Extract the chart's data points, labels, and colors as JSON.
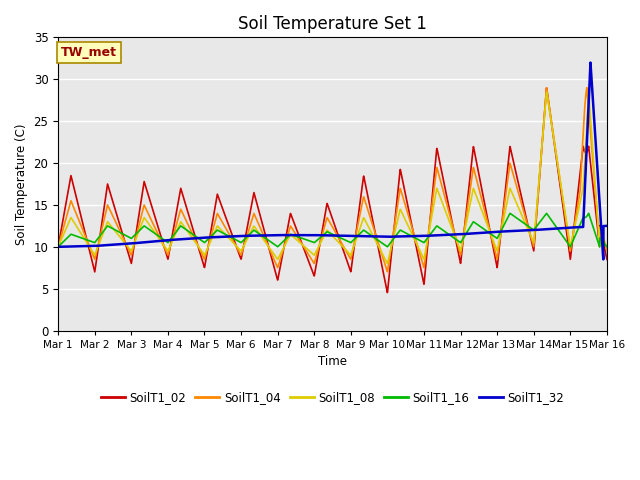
{
  "title": "Soil Temperature Set 1",
  "ylabel": "Soil Temperature (C)",
  "xlabel": "Time",
  "ylim": [
    0,
    35
  ],
  "xlim": [
    0,
    15
  ],
  "annotation": "TW_met",
  "plot_bg_color": "#e8e8e8",
  "series_colors": {
    "SoilT1_02": "#cc0000",
    "SoilT1_04": "#ff8800",
    "SoilT1_08": "#ddcc00",
    "SoilT1_16": "#00bb00",
    "SoilT1_32": "#0000cc"
  },
  "xtick_labels": [
    "Mar 1",
    "Mar 2",
    "Mar 3",
    "Mar 4",
    "Mar 5",
    "Mar 6",
    "Mar 7",
    "Mar 8",
    "Mar 9",
    "Mar 10",
    "Mar 11",
    "Mar 12",
    "Mar 13",
    "Mar 14",
    "Mar 15",
    "Mar 16"
  ],
  "xtick_positions": [
    0,
    1,
    2,
    3,
    4,
    5,
    6,
    7,
    8,
    9,
    10,
    11,
    12,
    13,
    14,
    15
  ],
  "ytick_positions": [
    0,
    5,
    10,
    15,
    20,
    25,
    30,
    35
  ],
  "ytick_labels": [
    "0",
    "5",
    "10",
    "15",
    "20",
    "25",
    "30",
    "35"
  ],
  "day_peaks_02": [
    18.5,
    17.5,
    17.8,
    17.0,
    16.3,
    16.5,
    14.0,
    15.2,
    18.5,
    19.3,
    21.8,
    22.0,
    22.0,
    29.0
  ],
  "day_mins_02": [
    7.0,
    8.0,
    8.5,
    7.5,
    8.5,
    6.0,
    6.5,
    7.0,
    4.5,
    5.5,
    8.0,
    7.5,
    9.5,
    8.5
  ],
  "base_32": [
    10.0,
    10.1,
    10.4,
    10.8,
    11.1,
    11.3,
    11.4,
    11.4,
    11.3,
    11.2,
    11.3,
    11.5,
    11.8,
    12.0,
    12.3,
    12.5
  ],
  "spike_day": 14.55,
  "spike_peak_32": 32.0,
  "spike_peak_04": 29.0,
  "spike_drop_32": 8.5
}
